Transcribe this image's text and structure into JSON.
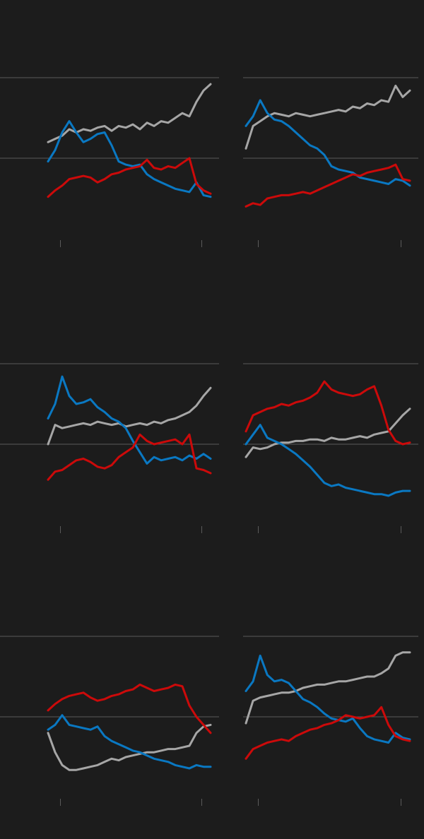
{
  "chart_data": [
    {
      "type": "line",
      "grid": true,
      "xlim": [
        0,
        23
      ],
      "ylim": [
        0,
        100
      ],
      "xticks": [
        1.7,
        21.7
      ],
      "yticks": [
        50,
        100
      ],
      "x": [
        0,
        1,
        2,
        3,
        4,
        5,
        6,
        7,
        8,
        9,
        10,
        11,
        12,
        13,
        14,
        15,
        16,
        17,
        18,
        19,
        20,
        21,
        22,
        23
      ],
      "series": [
        {
          "color": "#a6a6a6",
          "values": [
            60,
            62,
            64,
            68,
            66,
            68,
            67,
            69,
            70,
            67,
            70,
            69,
            71,
            68,
            72,
            70,
            73,
            72,
            75,
            78,
            76,
            85,
            92,
            96
          ]
        },
        {
          "color": "#0a78c2",
          "values": [
            48,
            55,
            66,
            73,
            66,
            60,
            62,
            65,
            66,
            58,
            48,
            46,
            45,
            46,
            40,
            37,
            35,
            33,
            31,
            30,
            29,
            35,
            27,
            26
          ]
        },
        {
          "color": "#cc0a0a",
          "values": [
            26,
            30,
            33,
            37,
            38,
            39,
            38,
            35,
            37,
            40,
            41,
            43,
            44,
            45,
            49,
            44,
            43,
            45,
            44,
            47,
            50,
            34,
            30,
            28
          ]
        }
      ]
    },
    {
      "type": "line",
      "grid": true,
      "xlim": [
        0,
        23
      ],
      "ylim": [
        0,
        100
      ],
      "xticks": [
        1.7,
        21.7
      ],
      "yticks": [
        50,
        100
      ],
      "x": [
        0,
        1,
        2,
        3,
        4,
        5,
        6,
        7,
        8,
        9,
        10,
        11,
        12,
        13,
        14,
        15,
        16,
        17,
        18,
        19,
        20,
        21,
        22,
        23
      ],
      "series": [
        {
          "color": "#a6a6a6",
          "values": [
            56,
            70,
            73,
            76,
            78,
            77,
            76,
            78,
            77,
            76,
            77,
            78,
            79,
            80,
            79,
            82,
            81,
            84,
            83,
            86,
            85,
            95,
            88,
            92
          ]
        },
        {
          "color": "#0a78c2",
          "values": [
            70,
            76,
            86,
            78,
            74,
            73,
            70,
            66,
            62,
            58,
            56,
            52,
            45,
            43,
            42,
            41,
            38,
            37,
            36,
            35,
            34,
            37,
            36,
            33
          ]
        },
        {
          "color": "#cc0a0a",
          "values": [
            20,
            22,
            21,
            25,
            26,
            27,
            27,
            28,
            29,
            28,
            30,
            32,
            34,
            36,
            38,
            40,
            39,
            41,
            42,
            43,
            44,
            46,
            37,
            36
          ]
        }
      ]
    },
    {
      "type": "line",
      "grid": true,
      "xlim": [
        0,
        23
      ],
      "ylim": [
        0,
        100
      ],
      "xticks": [
        1.7,
        21.7
      ],
      "yticks": [
        50,
        100
      ],
      "x": [
        0,
        1,
        2,
        3,
        4,
        5,
        6,
        7,
        8,
        9,
        10,
        11,
        12,
        13,
        14,
        15,
        16,
        17,
        18,
        19,
        20,
        21,
        22,
        23
      ],
      "series": [
        {
          "color": "#a6a6a6",
          "values": [
            50,
            62,
            60,
            61,
            62,
            63,
            62,
            64,
            63,
            62,
            63,
            61,
            62,
            63,
            62,
            64,
            63,
            65,
            66,
            68,
            70,
            74,
            80,
            85
          ]
        },
        {
          "color": "#0a78c2",
          "values": [
            66,
            75,
            92,
            80,
            75,
            76,
            78,
            73,
            70,
            66,
            64,
            60,
            52,
            45,
            38,
            42,
            40,
            41,
            42,
            40,
            43,
            41,
            44,
            41
          ]
        },
        {
          "color": "#cc0a0a",
          "values": [
            28,
            33,
            34,
            37,
            40,
            41,
            39,
            36,
            35,
            37,
            42,
            45,
            48,
            56,
            52,
            50,
            51,
            52,
            53,
            50,
            56,
            35,
            34,
            32
          ]
        }
      ]
    },
    {
      "type": "line",
      "grid": true,
      "xlim": [
        0,
        23
      ],
      "ylim": [
        0,
        100
      ],
      "xticks": [
        1.7,
        21.7
      ],
      "yticks": [
        50,
        100
      ],
      "x": [
        0,
        1,
        2,
        3,
        4,
        5,
        6,
        7,
        8,
        9,
        10,
        11,
        12,
        13,
        14,
        15,
        16,
        17,
        18,
        19,
        20,
        21,
        22,
        23
      ],
      "series": [
        {
          "color": "#a6a6a6",
          "values": [
            42,
            48,
            47,
            48,
            50,
            51,
            51,
            52,
            52,
            53,
            53,
            52,
            54,
            53,
            53,
            54,
            55,
            54,
            56,
            57,
            58,
            63,
            68,
            72
          ]
        },
        {
          "color": "#0a78c2",
          "values": [
            50,
            56,
            62,
            54,
            52,
            50,
            47,
            44,
            40,
            36,
            31,
            26,
            24,
            25,
            23,
            22,
            21,
            20,
            19,
            19,
            18,
            20,
            21,
            21
          ]
        },
        {
          "color": "#cc0a0a",
          "values": [
            58,
            68,
            70,
            72,
            73,
            75,
            74,
            76,
            77,
            79,
            82,
            89,
            84,
            82,
            81,
            80,
            81,
            84,
            86,
            74,
            59,
            52,
            50,
            51
          ]
        }
      ]
    },
    {
      "type": "line",
      "grid": true,
      "xlim": [
        0,
        23
      ],
      "ylim": [
        0,
        100
      ],
      "xticks": [
        1.7,
        21.7
      ],
      "yticks": [
        50,
        100
      ],
      "x": [
        0,
        1,
        2,
        3,
        4,
        5,
        6,
        7,
        8,
        9,
        10,
        11,
        12,
        13,
        14,
        15,
        16,
        17,
        18,
        19,
        20,
        21,
        22,
        23
      ],
      "series": [
        {
          "color": "#a6a6a6",
          "values": [
            40,
            28,
            20,
            17,
            17,
            18,
            19,
            20,
            22,
            24,
            23,
            25,
            26,
            27,
            28,
            28,
            29,
            30,
            30,
            31,
            32,
            40,
            44,
            45
          ]
        },
        {
          "color": "#0a78c2",
          "values": [
            42,
            45,
            51,
            45,
            44,
            43,
            42,
            44,
            38,
            35,
            33,
            31,
            29,
            28,
            26,
            24,
            23,
            22,
            20,
            19,
            18,
            20,
            19,
            19
          ]
        },
        {
          "color": "#cc0a0a",
          "values": [
            54,
            58,
            61,
            63,
            64,
            65,
            62,
            60,
            61,
            63,
            64,
            66,
            67,
            70,
            68,
            66,
            67,
            68,
            70,
            69,
            57,
            50,
            45,
            40
          ]
        }
      ]
    },
    {
      "type": "line",
      "grid": true,
      "xlim": [
        0,
        23
      ],
      "ylim": [
        0,
        100
      ],
      "xticks": [
        1.7,
        21.7
      ],
      "yticks": [
        50,
        100
      ],
      "x": [
        0,
        1,
        2,
        3,
        4,
        5,
        6,
        7,
        8,
        9,
        10,
        11,
        12,
        13,
        14,
        15,
        16,
        17,
        18,
        19,
        20,
        21,
        22,
        23
      ],
      "series": [
        {
          "color": "#a6a6a6",
          "values": [
            46,
            60,
            62,
            63,
            64,
            65,
            65,
            66,
            68,
            69,
            70,
            70,
            71,
            72,
            72,
            73,
            74,
            75,
            75,
            77,
            80,
            88,
            90,
            90
          ]
        },
        {
          "color": "#0a78c2",
          "values": [
            66,
            72,
            88,
            76,
            72,
            73,
            71,
            66,
            61,
            59,
            56,
            52,
            49,
            48,
            47,
            49,
            43,
            38,
            36,
            35,
            34,
            40,
            37,
            36
          ]
        },
        {
          "color": "#cc0a0a",
          "values": [
            24,
            30,
            32,
            34,
            35,
            36,
            35,
            38,
            40,
            42,
            43,
            45,
            46,
            48,
            51,
            50,
            49,
            50,
            51,
            56,
            45,
            38,
            36,
            35
          ]
        }
      ]
    }
  ]
}
